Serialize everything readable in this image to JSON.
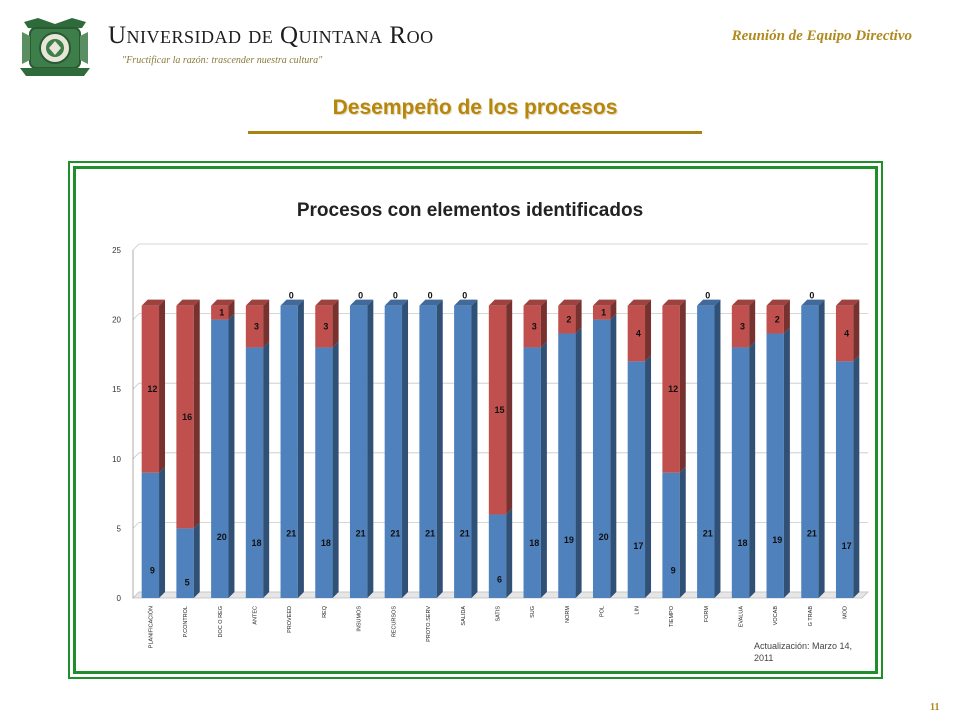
{
  "header": {
    "university_name": "Universidad de Quintana Roo",
    "motto": "\"Fructificar la razón: trascender nuestra cultura\"",
    "meeting": "Reunión de  Equipo Directivo"
  },
  "slide": {
    "title": "Desempeño de los procesos",
    "page_number": "11"
  },
  "colors": {
    "blue": "#4f81bd",
    "red": "#c0504d",
    "accent_gold": "#b7860b",
    "frame_green": "#1e8f2a"
  },
  "chart_data": {
    "type": "bar",
    "stacked": true,
    "title": "Procesos con elementos identificados",
    "ylim": [
      0,
      25
    ],
    "yticks": [
      0,
      5,
      10,
      15,
      20,
      25
    ],
    "grid": true,
    "categories": [
      "PLANIFICACIÓN",
      "P.CONTROL",
      "DOC O REG",
      "ANTEC",
      "PROVEED",
      "REQ",
      "INSUMOS",
      "RECURSOS",
      "PROTO.SERV",
      "SALIDA",
      "SATIS",
      "SUG",
      "NORM",
      "POL",
      "LIN",
      "TIEMPO",
      "FORM",
      "EVALUA",
      "VOCAB",
      "G TRAB",
      "MOD"
    ],
    "series": [
      {
        "color": "#4f81bd",
        "values": [
          9,
          5,
          20,
          18,
          21,
          18,
          21,
          21,
          21,
          21,
          6,
          18,
          19,
          20,
          17,
          9,
          21,
          18,
          19,
          21,
          17
        ]
      },
      {
        "color": "#c0504d",
        "values": [
          12,
          16,
          1,
          3,
          0,
          3,
          0,
          0,
          0,
          0,
          15,
          3,
          2,
          1,
          4,
          12,
          0,
          3,
          2,
          0,
          4
        ]
      }
    ],
    "annotation": "Actualización: Marzo 14, 2011"
  }
}
